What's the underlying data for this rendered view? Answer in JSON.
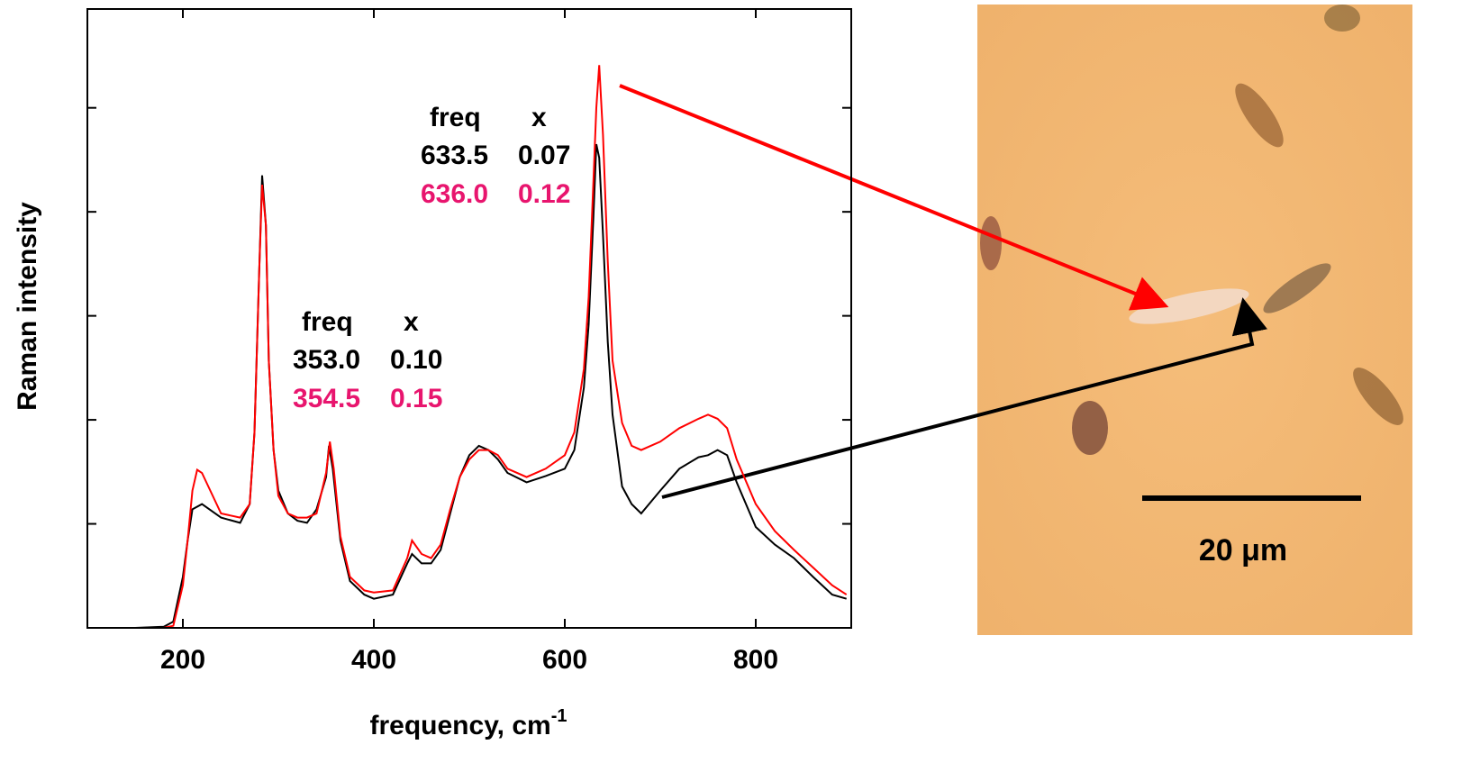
{
  "chart_data": {
    "type": "line",
    "x_label": "frequency, cm",
    "x_label_exponent": "-1",
    "y_label": "Raman intensity",
    "xlim": [
      100,
      900
    ],
    "xticks": [
      200,
      400,
      600,
      800
    ],
    "ylim": [
      0,
      595
    ],
    "yticks": [
      100,
      200,
      300,
      400,
      500
    ],
    "series": [
      {
        "color": "#000000",
        "x": [
          120,
          150,
          180,
          190,
          200,
          205,
          210,
          220,
          240,
          260,
          270,
          275,
          280,
          283,
          287,
          290,
          295,
          300,
          310,
          320,
          330,
          340,
          350,
          353,
          357,
          365,
          375,
          390,
          400,
          420,
          435,
          440,
          450,
          460,
          470,
          480,
          490,
          500,
          510,
          520,
          530,
          540,
          560,
          580,
          600,
          610,
          620,
          625,
          630,
          633,
          636,
          640,
          645,
          650,
          660,
          670,
          680,
          700,
          720,
          740,
          750,
          760,
          770,
          780,
          800,
          820,
          840,
          860,
          880,
          895
        ],
        "values": [
          0,
          0,
          1,
          6,
          49,
          84,
          114,
          119,
          106,
          101,
          119,
          188,
          344,
          435,
          387,
          257,
          171,
          132,
          110,
          103,
          101,
          114,
          145,
          175,
          153,
          84,
          45,
          32,
          28,
          32,
          62,
          71,
          62,
          62,
          75,
          110,
          145,
          166,
          175,
          171,
          162,
          149,
          140,
          146,
          153,
          171,
          231,
          292,
          396,
          465,
          452,
          378,
          275,
          205,
          136,
          119,
          110,
          132,
          153,
          164,
          166,
          171,
          166,
          140,
          97,
          80,
          67,
          49,
          32,
          28
        ]
      },
      {
        "color": "#ff0000",
        "x": [
          120,
          150,
          180,
          190,
          200,
          205,
          210,
          215,
          220,
          240,
          260,
          270,
          275,
          280,
          283,
          287,
          290,
          295,
          300,
          310,
          320,
          330,
          340,
          350,
          354,
          358,
          365,
          375,
          390,
          400,
          420,
          435,
          440,
          450,
          460,
          470,
          480,
          490,
          500,
          510,
          520,
          530,
          540,
          560,
          580,
          600,
          610,
          620,
          625,
          630,
          633,
          636,
          640,
          645,
          650,
          660,
          670,
          680,
          700,
          720,
          740,
          750,
          760,
          770,
          780,
          800,
          820,
          840,
          860,
          880,
          895
        ],
        "values": [
          0,
          0,
          0,
          2,
          41,
          84,
          132,
          152,
          149,
          110,
          106,
          119,
          188,
          344,
          426,
          387,
          257,
          171,
          127,
          110,
          106,
          106,
          110,
          149,
          179,
          153,
          88,
          49,
          36,
          34,
          36,
          67,
          84,
          71,
          67,
          80,
          114,
          145,
          162,
          171,
          171,
          166,
          153,
          145,
          153,
          166,
          188,
          249,
          318,
          430,
          500,
          541,
          474,
          352,
          257,
          197,
          175,
          171,
          179,
          192,
          201,
          205,
          201,
          192,
          162,
          119,
          93,
          75,
          58,
          41,
          32
        ]
      }
    ],
    "annotations": [
      {
        "header": [
          "freq",
          "x"
        ],
        "rows": [
          [
            "353.0",
            "0.10"
          ],
          [
            "354.5",
            "0.15"
          ]
        ],
        "row_colors": [
          "#000000",
          "#e8156e"
        ]
      },
      {
        "header": [
          "freq",
          "x"
        ],
        "rows": [
          [
            "633.5",
            "0.07"
          ],
          [
            "636.0",
            "0.12"
          ]
        ],
        "row_colors": [
          "#000000",
          "#e8156e"
        ]
      }
    ]
  },
  "image": {
    "scale_bar_label": "20 μm"
  }
}
